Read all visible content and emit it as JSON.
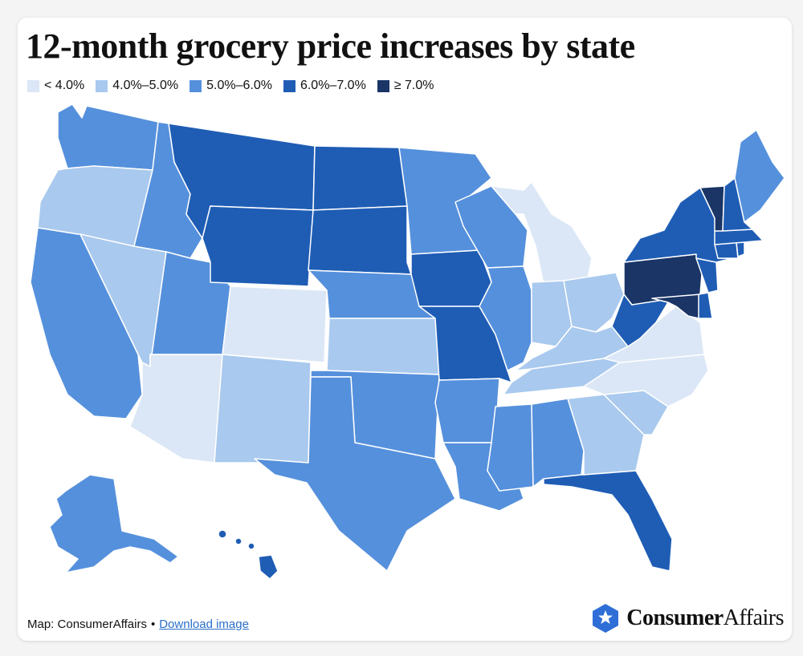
{
  "title": "12-month grocery price increases by state",
  "legend": [
    {
      "label": "< 4.0%",
      "color": "#dbe7f6"
    },
    {
      "label": "4.0%–5.0%",
      "color": "#a9c9ee"
    },
    {
      "label": "5.0%–6.0%",
      "color": "#5590dc"
    },
    {
      "label": "6.0%–7.0%",
      "color": "#1f5db5"
    },
    {
      "label": "≥ 7.0%",
      "color": "#1a3566"
    }
  ],
  "footer": {
    "credit": "Map: ConsumerAffairs",
    "separator": "•",
    "download_link": "Download image"
  },
  "brand": {
    "bold": "Consumer",
    "regular": "Affairs"
  },
  "map_data": {
    "categories": [
      {
        "state": "Washington",
        "bin": 2
      },
      {
        "state": "Oregon",
        "bin": 1
      },
      {
        "state": "California",
        "bin": 2
      },
      {
        "state": "Nevada",
        "bin": 1
      },
      {
        "state": "Idaho",
        "bin": 2
      },
      {
        "state": "Utah",
        "bin": 2
      },
      {
        "state": "Arizona",
        "bin": 0
      },
      {
        "state": "Montana",
        "bin": 3
      },
      {
        "state": "Wyoming",
        "bin": 3
      },
      {
        "state": "Colorado",
        "bin": 0
      },
      {
        "state": "New Mexico",
        "bin": 1
      },
      {
        "state": "North Dakota",
        "bin": 3
      },
      {
        "state": "South Dakota",
        "bin": 3
      },
      {
        "state": "Nebraska",
        "bin": 2
      },
      {
        "state": "Kansas",
        "bin": 1
      },
      {
        "state": "Oklahoma",
        "bin": 2
      },
      {
        "state": "Texas",
        "bin": 2
      },
      {
        "state": "Minnesota",
        "bin": 2
      },
      {
        "state": "Iowa",
        "bin": 3
      },
      {
        "state": "Missouri",
        "bin": 3
      },
      {
        "state": "Arkansas",
        "bin": 2
      },
      {
        "state": "Louisiana",
        "bin": 2
      },
      {
        "state": "Wisconsin",
        "bin": 2
      },
      {
        "state": "Illinois",
        "bin": 2
      },
      {
        "state": "Michigan",
        "bin": 0
      },
      {
        "state": "Indiana",
        "bin": 1
      },
      {
        "state": "Ohio",
        "bin": 1
      },
      {
        "state": "Kentucky",
        "bin": 1
      },
      {
        "state": "Tennessee",
        "bin": 1
      },
      {
        "state": "Mississippi",
        "bin": 2
      },
      {
        "state": "Alabama",
        "bin": 2
      },
      {
        "state": "Georgia",
        "bin": 1
      },
      {
        "state": "Florida",
        "bin": 3
      },
      {
        "state": "South Carolina",
        "bin": 1
      },
      {
        "state": "North Carolina",
        "bin": 0
      },
      {
        "state": "Virginia",
        "bin": 0
      },
      {
        "state": "West Virginia",
        "bin": 3
      },
      {
        "state": "Pennsylvania",
        "bin": 4
      },
      {
        "state": "New York",
        "bin": 3
      },
      {
        "state": "Vermont",
        "bin": 4
      },
      {
        "state": "New Hampshire",
        "bin": 3
      },
      {
        "state": "Maine",
        "bin": 2
      },
      {
        "state": "Massachusetts",
        "bin": 3
      },
      {
        "state": "Connecticut",
        "bin": 3
      },
      {
        "state": "Rhode Island",
        "bin": 3
      },
      {
        "state": "New Jersey",
        "bin": 3
      },
      {
        "state": "Delaware",
        "bin": 3
      },
      {
        "state": "Maryland",
        "bin": 4
      },
      {
        "state": "Alaska",
        "bin": 2
      },
      {
        "state": "Hawaii",
        "bin": 3
      }
    ]
  }
}
